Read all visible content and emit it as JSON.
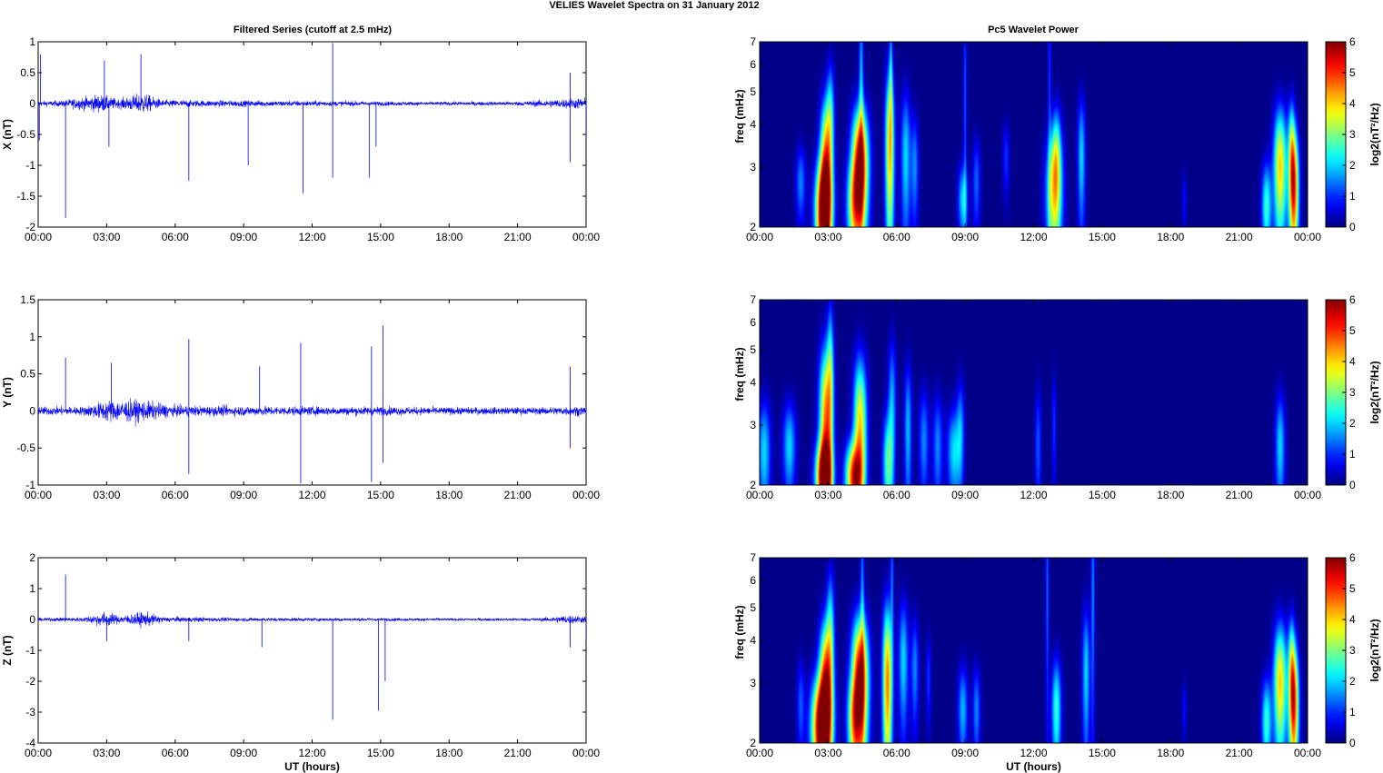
{
  "figure": {
    "title": "VELIES Wavelet Spectra on 31 January   2012",
    "left_title": "Filtered Series (cutoff at 2.5 mHz)",
    "right_title": "Pc5 Wavelet Power",
    "xlabel": "UT (hours)",
    "colorbar_label": "log2(nT²/Hz)",
    "colorbar_ticks": [
      "0",
      "1",
      "2",
      "3",
      "4",
      "5",
      "6"
    ]
  },
  "chart_data": [
    {
      "type": "line",
      "panel": "X",
      "ylabel": "X (nT)",
      "ylim": [
        -2,
        1
      ],
      "yticks": [
        "-2",
        "-1.5",
        "-1",
        "-0.5",
        "0",
        "0.5",
        "1"
      ],
      "xlim": [
        0,
        24
      ],
      "xticks": [
        "00:00",
        "03:00",
        "06:00",
        "09:00",
        "12:00",
        "15:00",
        "18:00",
        "21:00",
        "00:00"
      ],
      "line_color": "#0000ff",
      "base_noise": [
        [
          0,
          0.08
        ],
        [
          1,
          0.1
        ],
        [
          2.7,
          0.3
        ],
        [
          3.5,
          0.15
        ],
        [
          4.6,
          0.35
        ],
        [
          5.4,
          0.12
        ],
        [
          9,
          0.1
        ],
        [
          14,
          0.08
        ],
        [
          17,
          0.06
        ],
        [
          21,
          0.07
        ],
        [
          23,
          0.15
        ],
        [
          24,
          0.2
        ]
      ],
      "spikes": [
        [
          0.1,
          0.8
        ],
        [
          0.05,
          -0.6
        ],
        [
          1.2,
          -1.85
        ],
        [
          2.9,
          0.7
        ],
        [
          3.1,
          -0.7
        ],
        [
          4.5,
          0.8
        ],
        [
          6.6,
          -1.25
        ],
        [
          9.2,
          -1.0
        ],
        [
          11.6,
          -1.45
        ],
        [
          12.9,
          0.98
        ],
        [
          12.9,
          -1.2
        ],
        [
          14.5,
          -1.2
        ],
        [
          14.8,
          -0.7
        ],
        [
          23.3,
          0.5
        ],
        [
          23.3,
          -0.95
        ],
        [
          24,
          -0.55
        ]
      ]
    },
    {
      "type": "line",
      "panel": "Y",
      "ylabel": "Y (nT)",
      "ylim": [
        -1,
        1.5
      ],
      "yticks": [
        "-1",
        "-0.5",
        "0",
        "0.5",
        "1",
        "1.5"
      ],
      "xlim": [
        0,
        24
      ],
      "xticks": [
        "00:00",
        "03:00",
        "06:00",
        "09:00",
        "12:00",
        "15:00",
        "18:00",
        "21:00",
        "00:00"
      ],
      "line_color": "#0000ff",
      "base_noise": [
        [
          0,
          0.12
        ],
        [
          2,
          0.12
        ],
        [
          3,
          0.3
        ],
        [
          4.5,
          0.3
        ],
        [
          6,
          0.15
        ],
        [
          12,
          0.12
        ],
        [
          15,
          0.12
        ],
        [
          18,
          0.1
        ],
        [
          22,
          0.1
        ],
        [
          24,
          0.14
        ]
      ],
      "spikes": [
        [
          1.2,
          0.72
        ],
        [
          3.2,
          0.65
        ],
        [
          6.6,
          0.97
        ],
        [
          6.6,
          -0.85
        ],
        [
          9.7,
          0.6
        ],
        [
          11.5,
          0.92
        ],
        [
          11.5,
          -0.98
        ],
        [
          14.6,
          0.87
        ],
        [
          14.6,
          -0.96
        ],
        [
          15.1,
          1.15
        ],
        [
          15.1,
          -0.7
        ],
        [
          23.3,
          0.6
        ],
        [
          23.3,
          -0.5
        ]
      ]
    },
    {
      "type": "line",
      "panel": "Z",
      "ylabel": "Z (nT)",
      "ylim": [
        -4,
        2
      ],
      "yticks": [
        "-4",
        "-3",
        "-2",
        "-1",
        "0",
        "1",
        "2"
      ],
      "xlim": [
        0,
        24
      ],
      "xticks": [
        "00:00",
        "03:00",
        "06:00",
        "09:00",
        "12:00",
        "15:00",
        "18:00",
        "21:00",
        "00:00"
      ],
      "line_color": "#0000ff",
      "base_noise": [
        [
          0,
          0.1
        ],
        [
          2,
          0.15
        ],
        [
          2.9,
          0.5
        ],
        [
          3.6,
          0.25
        ],
        [
          4.6,
          0.5
        ],
        [
          5.5,
          0.18
        ],
        [
          9,
          0.12
        ],
        [
          15,
          0.1
        ],
        [
          18,
          0.08
        ],
        [
          22,
          0.1
        ],
        [
          23.3,
          0.3
        ],
        [
          24,
          0.2
        ]
      ],
      "spikes": [
        [
          1.2,
          1.45
        ],
        [
          3,
          -0.7
        ],
        [
          6.6,
          -0.7
        ],
        [
          9.8,
          -0.9
        ],
        [
          12.9,
          -3.25
        ],
        [
          14.9,
          -2.95
        ],
        [
          15.2,
          -2.0
        ],
        [
          23.3,
          -0.9
        ],
        [
          24,
          -0.6
        ]
      ]
    },
    {
      "type": "heatmap",
      "panel": "X",
      "ylabel": "freq (mHz)",
      "ylim": [
        2,
        7
      ],
      "yscale": "log",
      "yticks": [
        "2",
        "3",
        "4",
        "5",
        "6",
        "7"
      ],
      "xlim": [
        0,
        24
      ],
      "xticks": [
        "00:00",
        "03:00",
        "06:00",
        "09:00",
        "12:00",
        "15:00",
        "18:00",
        "21:00",
        "00:00"
      ],
      "clim": [
        0,
        6
      ],
      "colormap": "jet",
      "blobs": [
        [
          1.8,
          2.7,
          0.15,
          0.2,
          1.5
        ],
        [
          2.8,
          2.2,
          0.25,
          0.3,
          6.0
        ],
        [
          2.9,
          3.2,
          0.18,
          0.35,
          4.0
        ],
        [
          3.1,
          4.3,
          0.12,
          0.3,
          2.0
        ],
        [
          4.1,
          2.3,
          0.22,
          0.25,
          2.5
        ],
        [
          4.4,
          3.0,
          0.25,
          0.35,
          6.0
        ],
        [
          4.45,
          5.5,
          0.07,
          0.45,
          1.8
        ],
        [
          5.7,
          3.4,
          0.14,
          0.5,
          4.0
        ],
        [
          5.75,
          6.0,
          0.05,
          0.3,
          1.5
        ],
        [
          6.4,
          3.2,
          0.15,
          0.4,
          2.0
        ],
        [
          6.8,
          3.0,
          0.12,
          0.3,
          1.5
        ],
        [
          8.9,
          2.4,
          0.15,
          0.2,
          2.0
        ],
        [
          9.0,
          5.0,
          0.05,
          0.6,
          1.2
        ],
        [
          9.5,
          2.7,
          0.12,
          0.25,
          1.3
        ],
        [
          10.8,
          3.2,
          0.1,
          0.2,
          1.0
        ],
        [
          12.9,
          2.5,
          0.25,
          0.35,
          3.5
        ],
        [
          13.0,
          3.4,
          0.15,
          0.25,
          2.0
        ],
        [
          12.7,
          5.5,
          0.05,
          0.5,
          1.0
        ],
        [
          14.1,
          3.2,
          0.12,
          0.35,
          2.0
        ],
        [
          18.6,
          2.4,
          0.07,
          0.15,
          0.8
        ],
        [
          22.2,
          2.3,
          0.15,
          0.25,
          2.5
        ],
        [
          22.8,
          3.0,
          0.2,
          0.35,
          4.0
        ],
        [
          23.4,
          2.6,
          0.15,
          0.35,
          5.0
        ],
        [
          23.3,
          3.6,
          0.1,
          0.25,
          2.0
        ]
      ]
    },
    {
      "type": "heatmap",
      "panel": "Y",
      "ylabel": "freq (mHz)",
      "ylim": [
        2,
        7
      ],
      "yscale": "log",
      "yticks": [
        "2",
        "3",
        "4",
        "5",
        "6",
        "7"
      ],
      "xlim": [
        0,
        24
      ],
      "xticks": [
        "00:00",
        "03:00",
        "06:00",
        "09:00",
        "12:00",
        "15:00",
        "18:00",
        "21:00",
        "00:00"
      ],
      "clim": [
        0,
        6
      ],
      "colormap": "jet",
      "blobs": [
        [
          0.2,
          2.5,
          0.2,
          0.3,
          2.0
        ],
        [
          1.3,
          2.6,
          0.2,
          0.25,
          2.0
        ],
        [
          2.8,
          2.1,
          0.25,
          0.2,
          5.0
        ],
        [
          2.9,
          3.0,
          0.2,
          0.5,
          4.5
        ],
        [
          3.1,
          4.5,
          0.1,
          0.4,
          2.0
        ],
        [
          4.1,
          2.1,
          0.25,
          0.2,
          4.5
        ],
        [
          4.4,
          2.9,
          0.2,
          0.45,
          4.0
        ],
        [
          5.6,
          2.3,
          0.15,
          0.3,
          2.5
        ],
        [
          5.8,
          3.4,
          0.12,
          0.4,
          1.8
        ],
        [
          6.5,
          2.9,
          0.12,
          0.4,
          1.8
        ],
        [
          7.2,
          2.7,
          0.15,
          0.3,
          1.5
        ],
        [
          7.8,
          2.6,
          0.15,
          0.3,
          1.5
        ],
        [
          8.5,
          2.5,
          0.2,
          0.25,
          2.0
        ],
        [
          8.8,
          2.9,
          0.12,
          0.3,
          1.5
        ],
        [
          12.2,
          2.6,
          0.1,
          0.35,
          1.2
        ],
        [
          12.9,
          3.0,
          0.07,
          0.3,
          1.0
        ],
        [
          22.8,
          2.6,
          0.15,
          0.3,
          2.0
        ]
      ]
    },
    {
      "type": "heatmap",
      "panel": "Z",
      "ylabel": "freq (mHz)",
      "ylim": [
        2,
        7
      ],
      "yscale": "log",
      "yticks": [
        "2",
        "3",
        "4",
        "5",
        "6",
        "7"
      ],
      "xlim": [
        0,
        24
      ],
      "xticks": [
        "00:00",
        "03:00",
        "06:00",
        "09:00",
        "12:00",
        "15:00",
        "18:00",
        "21:00",
        "00:00"
      ],
      "clim": [
        0,
        6
      ],
      "colormap": "jet",
      "blobs": [
        [
          1.8,
          2.6,
          0.12,
          0.25,
          1.2
        ],
        [
          2.7,
          2.2,
          0.3,
          0.3,
          6.0
        ],
        [
          2.9,
          3.1,
          0.2,
          0.35,
          4.5
        ],
        [
          3.1,
          4.4,
          0.12,
          0.35,
          2.0
        ],
        [
          4.1,
          2.3,
          0.2,
          0.25,
          2.5
        ],
        [
          4.4,
          3.0,
          0.25,
          0.4,
          6.0
        ],
        [
          4.5,
          5.6,
          0.06,
          0.45,
          1.5
        ],
        [
          5.6,
          3.0,
          0.15,
          0.5,
          4.5
        ],
        [
          5.8,
          6.2,
          0.05,
          0.3,
          1.3
        ],
        [
          6.3,
          3.5,
          0.15,
          0.35,
          2.0
        ],
        [
          6.8,
          3.3,
          0.12,
          0.3,
          1.5
        ],
        [
          7.4,
          3.1,
          0.08,
          0.25,
          1.0
        ],
        [
          8.9,
          2.5,
          0.15,
          0.25,
          1.8
        ],
        [
          9.5,
          2.5,
          0.12,
          0.25,
          1.5
        ],
        [
          13.0,
          2.5,
          0.15,
          0.3,
          2.5
        ],
        [
          12.6,
          5.5,
          0.05,
          0.6,
          1.3
        ],
        [
          14.3,
          3.2,
          0.12,
          0.4,
          2.0
        ],
        [
          14.6,
          5.5,
          0.06,
          0.6,
          1.5
        ],
        [
          18.6,
          2.5,
          0.07,
          0.15,
          0.8
        ],
        [
          22.2,
          2.3,
          0.15,
          0.25,
          2.5
        ],
        [
          22.8,
          3.0,
          0.2,
          0.35,
          4.0
        ],
        [
          23.4,
          2.6,
          0.15,
          0.35,
          5.0
        ],
        [
          23.3,
          3.6,
          0.1,
          0.25,
          2.0
        ]
      ]
    }
  ]
}
